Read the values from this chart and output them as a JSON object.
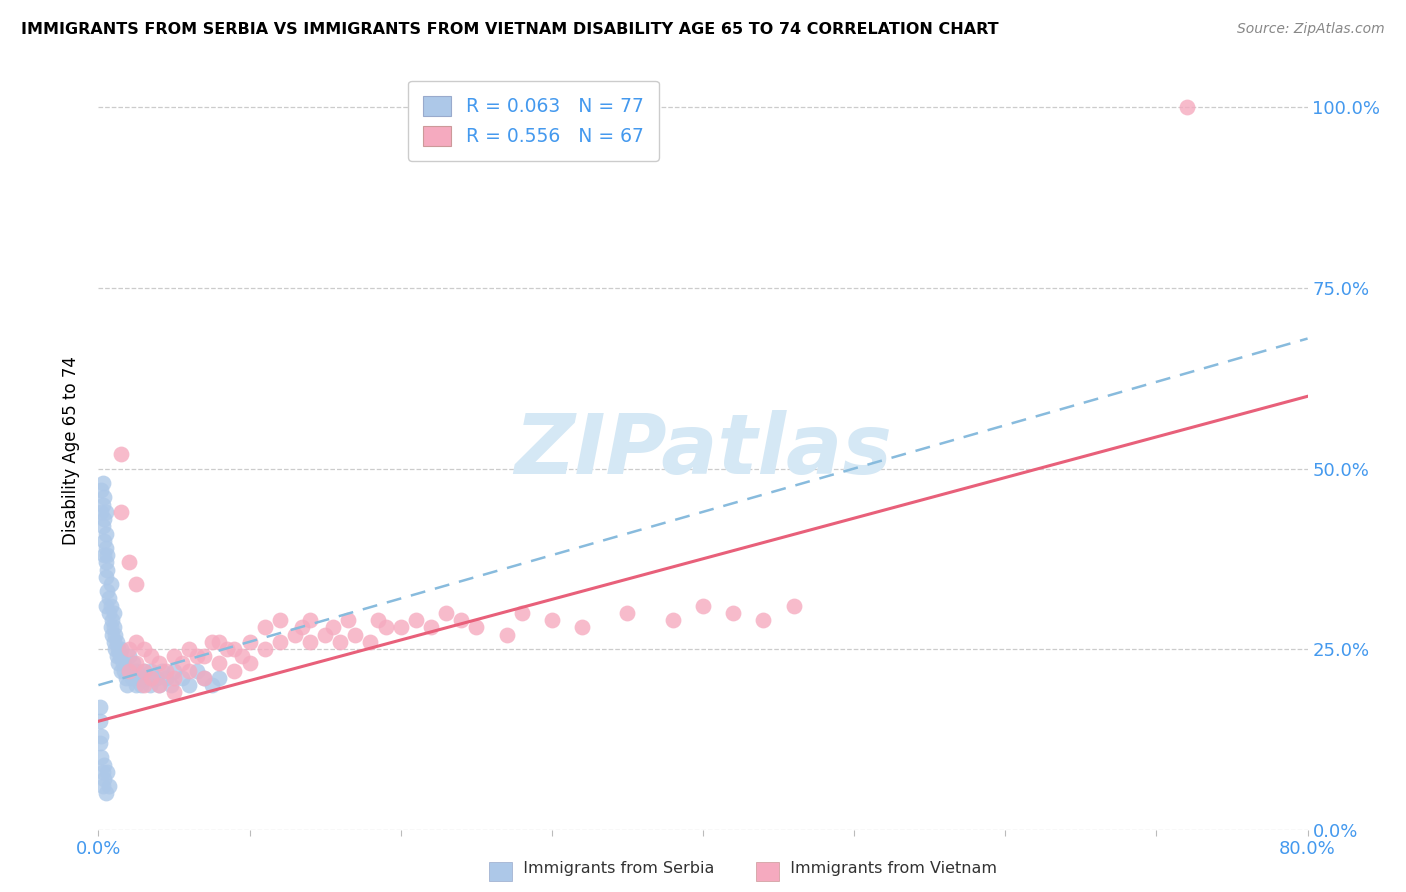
{
  "title": "IMMIGRANTS FROM SERBIA VS IMMIGRANTS FROM VIETNAM DISABILITY AGE 65 TO 74 CORRELATION CHART",
  "source": "Source: ZipAtlas.com",
  "ylabel": "Disability Age 65 to 74",
  "xmin": 0.0,
  "xmax": 0.8,
  "ymin": 0.0,
  "ymax": 1.05,
  "ytick_labels_right": [
    "0.0%",
    "25.0%",
    "50.0%",
    "75.0%",
    "100.0%"
  ],
  "ytick_positions": [
    0.0,
    0.25,
    0.5,
    0.75,
    1.0
  ],
  "serbia_R": "0.063",
  "serbia_N": "77",
  "vietnam_R": "0.556",
  "vietnam_N": "67",
  "serbia_color": "#adc8e8",
  "vietnam_color": "#f5aabf",
  "serbia_line_color": "#88bbdd",
  "vietnam_line_color": "#e8607a",
  "watermark_color": "#d5e8f5",
  "serbia_x": [
    0.002,
    0.002,
    0.003,
    0.003,
    0.003,
    0.004,
    0.004,
    0.004,
    0.004,
    0.005,
    0.005,
    0.005,
    0.005,
    0.005,
    0.005,
    0.006,
    0.006,
    0.006,
    0.007,
    0.007,
    0.008,
    0.008,
    0.008,
    0.009,
    0.009,
    0.01,
    0.01,
    0.01,
    0.011,
    0.011,
    0.012,
    0.012,
    0.013,
    0.013,
    0.014,
    0.015,
    0.015,
    0.016,
    0.017,
    0.018,
    0.019,
    0.02,
    0.02,
    0.022,
    0.023,
    0.025,
    0.025,
    0.027,
    0.028,
    0.03,
    0.032,
    0.034,
    0.035,
    0.038,
    0.04,
    0.042,
    0.045,
    0.048,
    0.05,
    0.055,
    0.06,
    0.065,
    0.07,
    0.075,
    0.08,
    0.001,
    0.001,
    0.001,
    0.002,
    0.002,
    0.003,
    0.003,
    0.004,
    0.004,
    0.005,
    0.006,
    0.007
  ],
  "serbia_y": [
    0.44,
    0.47,
    0.42,
    0.45,
    0.48,
    0.38,
    0.4,
    0.43,
    0.46,
    0.35,
    0.37,
    0.39,
    0.41,
    0.44,
    0.31,
    0.33,
    0.36,
    0.38,
    0.3,
    0.32,
    0.28,
    0.31,
    0.34,
    0.27,
    0.29,
    0.26,
    0.28,
    0.3,
    0.25,
    0.27,
    0.24,
    0.26,
    0.23,
    0.25,
    0.24,
    0.22,
    0.25,
    0.23,
    0.22,
    0.21,
    0.2,
    0.22,
    0.24,
    0.21,
    0.23,
    0.2,
    0.22,
    0.21,
    0.2,
    0.22,
    0.21,
    0.2,
    0.22,
    0.21,
    0.2,
    0.22,
    0.21,
    0.2,
    0.22,
    0.21,
    0.2,
    0.22,
    0.21,
    0.2,
    0.21,
    0.15,
    0.17,
    0.12,
    0.1,
    0.13,
    0.08,
    0.06,
    0.07,
    0.09,
    0.05,
    0.08,
    0.06
  ],
  "vietnam_x": [
    0.02,
    0.02,
    0.025,
    0.025,
    0.03,
    0.03,
    0.03,
    0.035,
    0.035,
    0.04,
    0.04,
    0.045,
    0.05,
    0.05,
    0.05,
    0.055,
    0.06,
    0.06,
    0.065,
    0.07,
    0.07,
    0.075,
    0.08,
    0.08,
    0.085,
    0.09,
    0.09,
    0.095,
    0.1,
    0.1,
    0.11,
    0.11,
    0.12,
    0.12,
    0.13,
    0.135,
    0.14,
    0.14,
    0.15,
    0.155,
    0.16,
    0.165,
    0.17,
    0.18,
    0.185,
    0.19,
    0.2,
    0.21,
    0.22,
    0.23,
    0.24,
    0.25,
    0.27,
    0.28,
    0.3,
    0.32,
    0.35,
    0.38,
    0.4,
    0.42,
    0.44,
    0.46,
    0.015,
    0.015,
    0.02,
    0.025,
    0.72
  ],
  "vietnam_y": [
    0.22,
    0.25,
    0.23,
    0.26,
    0.2,
    0.22,
    0.25,
    0.21,
    0.24,
    0.2,
    0.23,
    0.22,
    0.19,
    0.21,
    0.24,
    0.23,
    0.22,
    0.25,
    0.24,
    0.21,
    0.24,
    0.26,
    0.23,
    0.26,
    0.25,
    0.22,
    0.25,
    0.24,
    0.23,
    0.26,
    0.25,
    0.28,
    0.26,
    0.29,
    0.27,
    0.28,
    0.26,
    0.29,
    0.27,
    0.28,
    0.26,
    0.29,
    0.27,
    0.26,
    0.29,
    0.28,
    0.28,
    0.29,
    0.28,
    0.3,
    0.29,
    0.28,
    0.27,
    0.3,
    0.29,
    0.28,
    0.3,
    0.29,
    0.31,
    0.3,
    0.29,
    0.31,
    0.52,
    0.44,
    0.37,
    0.34,
    1.0
  ],
  "serbia_line_start_y": 0.2,
  "serbia_line_end_y": 0.68,
  "vietnam_line_start_y": 0.15,
  "vietnam_line_end_y": 0.6
}
